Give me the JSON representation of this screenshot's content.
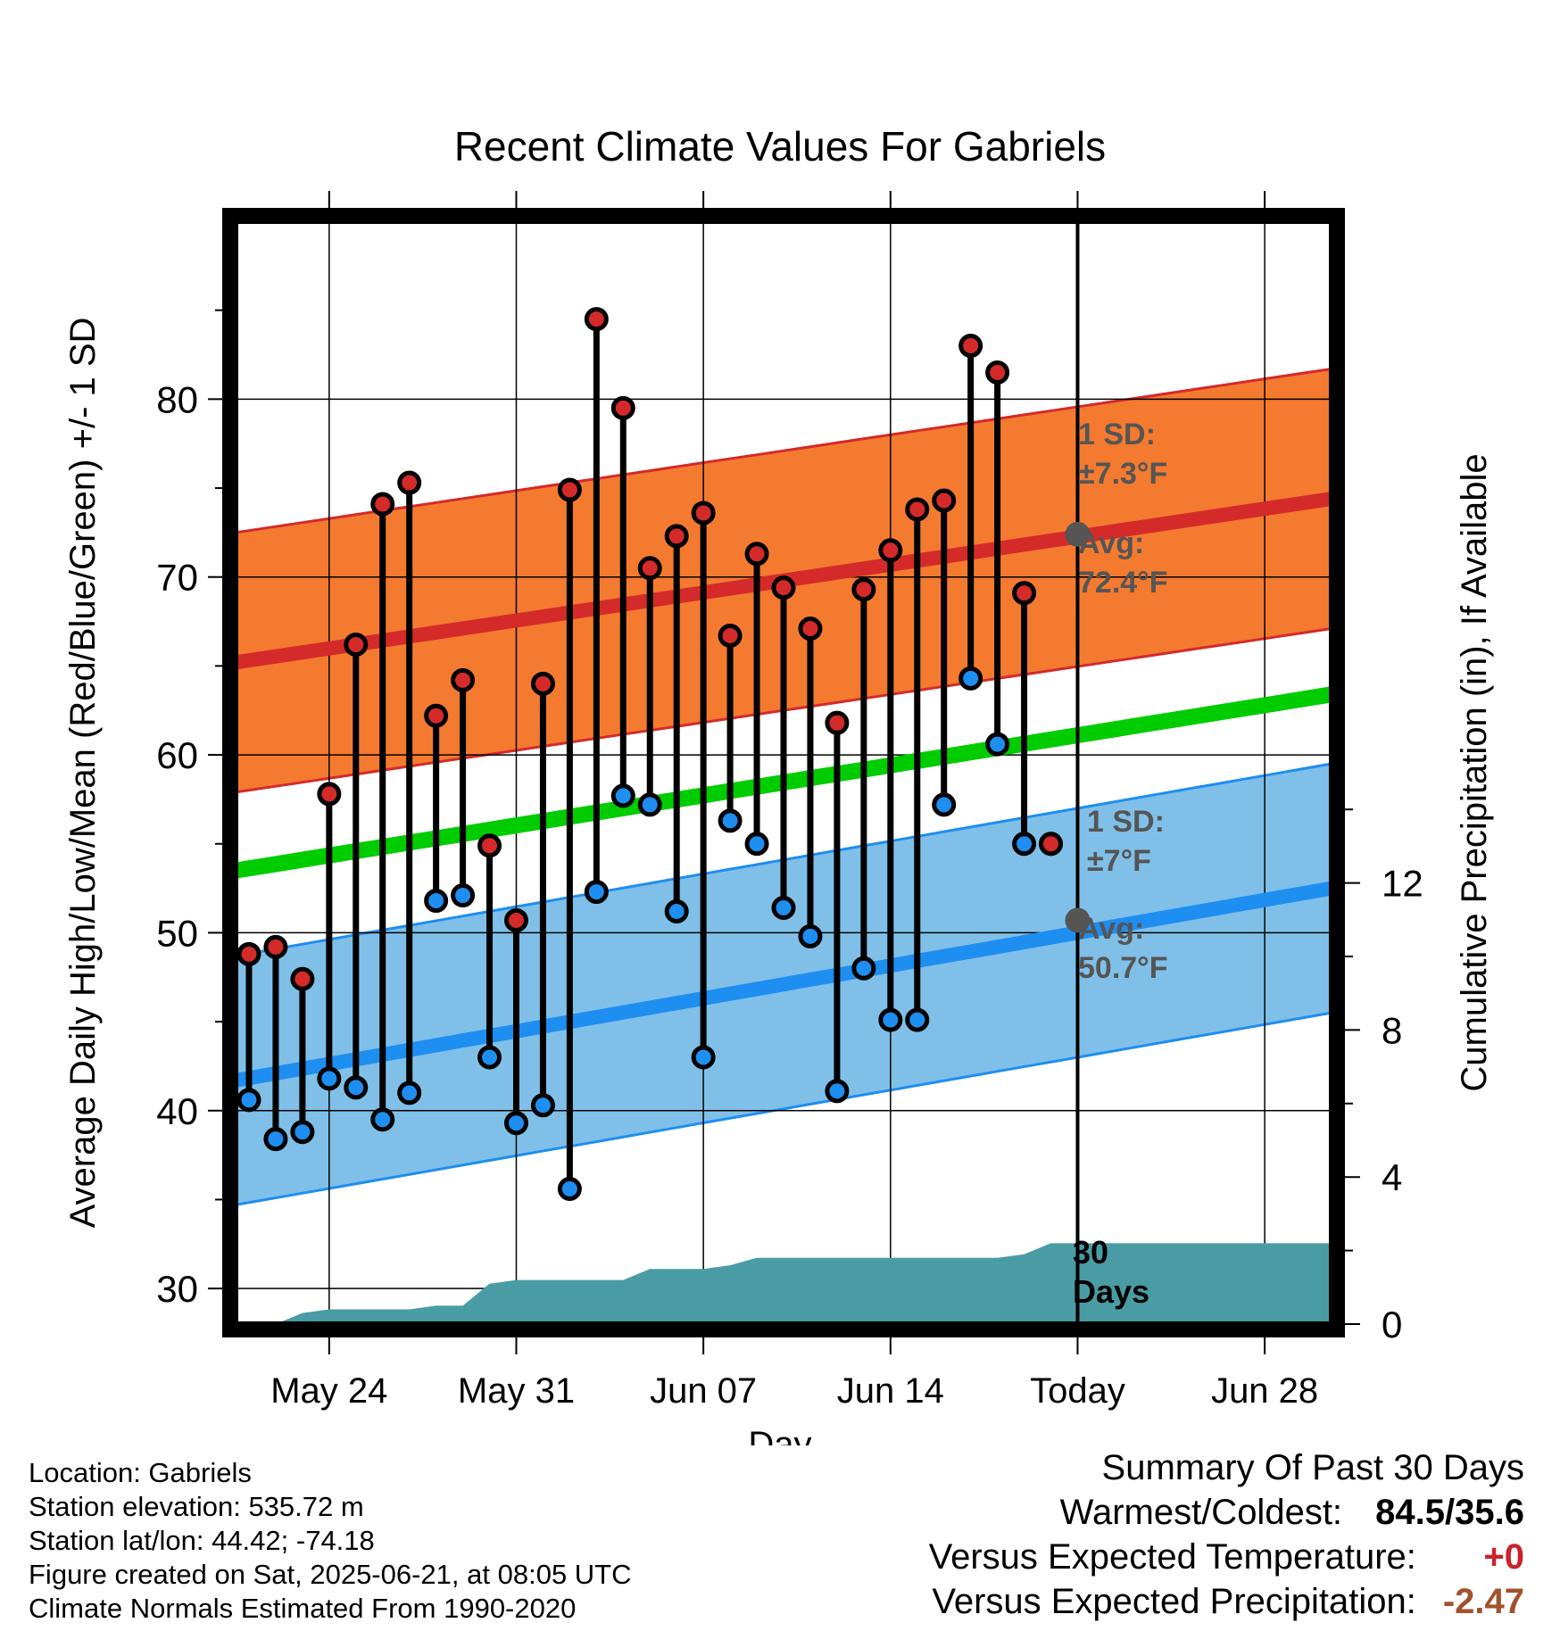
{
  "chart_data": {
    "type": "line",
    "title": "Recent Climate Values For Gabriels",
    "xlabel": "Day",
    "ylabel": "Average Daily High/Low/Mean (Red/Blue/Green) +/- 1 SD",
    "y2label": "Cumulative Precipitation (in), If Available",
    "ylim": [
      28,
      90
    ],
    "y2lim": [
      0,
      30
    ],
    "yticks": [
      "30",
      "40",
      "50",
      "60",
      "70",
      "80"
    ],
    "y2ticks": [
      "0",
      "4",
      "8",
      "12"
    ],
    "x_tick_labels": [
      "May 24",
      "May 31",
      "Jun 07",
      "Jun 14",
      "Today",
      "Jun 28"
    ],
    "x_tick_days": [
      24,
      31,
      38,
      45,
      52,
      59
    ],
    "xlim": [
      20.5,
      61.5
    ],
    "today_day": 52,
    "days": [
      21,
      22,
      23,
      24,
      25,
      26,
      27,
      28,
      29,
      30,
      31,
      32,
      33,
      34,
      35,
      36,
      37,
      38,
      39,
      40,
      41,
      42,
      43,
      44,
      45,
      46,
      47,
      48,
      49,
      50,
      51
    ],
    "highs": [
      48.8,
      49.2,
      47.4,
      57.8,
      66.2,
      74.1,
      75.3,
      62.2,
      64.2,
      54.9,
      50.7,
      64.0,
      74.9,
      84.5,
      79.5,
      70.5,
      72.3,
      73.6,
      66.7,
      71.3,
      69.4,
      67.1,
      61.8,
      69.3,
      71.5,
      73.8,
      74.3,
      83.0,
      81.5,
      69.1,
      55.0
    ],
    "lows": [
      40.6,
      38.4,
      38.8,
      41.8,
      41.3,
      39.5,
      41.0,
      51.8,
      52.1,
      43.0,
      39.3,
      40.3,
      35.6,
      52.3,
      57.7,
      57.2,
      51.2,
      43.0,
      56.3,
      55.0,
      51.4,
      49.8,
      41.1,
      48.0,
      45.1,
      45.1,
      57.2,
      64.3,
      60.6,
      55.0,
      55.0
    ],
    "normal_high": {
      "start": 65.2,
      "end": 74.4
    },
    "normal_low": {
      "start": 41.7,
      "end": 52.5
    },
    "normal_mean": {
      "start": 53.5,
      "end": 63.4
    },
    "high_sd": 7.3,
    "low_sd": 7.0,
    "precip_days": [
      21,
      22,
      23,
      24,
      25,
      26,
      27,
      28,
      29,
      30,
      31,
      32,
      33,
      34,
      35,
      36,
      37,
      38,
      39,
      40,
      41,
      42,
      43,
      44,
      45,
      46,
      47,
      48,
      49,
      50,
      51,
      52,
      61.5
    ],
    "precip": [
      0,
      0,
      0.3,
      0.4,
      0.4,
      0.4,
      0.4,
      0.5,
      0.5,
      1.1,
      1.2,
      1.2,
      1.2,
      1.2,
      1.2,
      1.5,
      1.5,
      1.5,
      1.6,
      1.8,
      1.8,
      1.8,
      1.8,
      1.8,
      1.8,
      1.8,
      1.8,
      1.8,
      1.8,
      1.9,
      2.2,
      2.2,
      2.2
    ],
    "colors": {
      "high_band": "#f47a30",
      "high_band_edge": "#d42a2a",
      "high_line": "#d42a2a",
      "low_band": "#80c0e8",
      "low_band_edge": "#1e8ef0",
      "low_line": "#1e8ef0",
      "mean_line": "#00cc00",
      "precip": "#4a9ca4",
      "high_marker": "#d42a2a",
      "low_marker": "#1e8ef0",
      "annotation": "#555555"
    },
    "annotations": {
      "high_sd_label": "1 SD:",
      "high_sd_value": "±7.3°F",
      "high_avg_label": "Avg:",
      "high_avg_value": "72.4°F",
      "high_avg": 72.4,
      "low_sd_label": "1 SD:",
      "low_sd_value": "±7°F",
      "low_avg_label": "Avg:",
      "low_avg_value": "50.7°F",
      "low_avg": 50.7,
      "precip_label_1": "30",
      "precip_label_2": "Days"
    }
  },
  "footer": {
    "location": "Location: Gabriels",
    "elevation": "Station elevation: 535.72 m",
    "latlon": "Station lat/lon: 44.42; -74.18",
    "created": "Figure created on Sat, 2025-06-21, at 08:05 UTC",
    "normals": "Climate Normals Estimated From 1990-2020"
  },
  "summary": {
    "title": "Summary Of Past 30 Days",
    "warm_cold_label": "Warmest/Coldest:",
    "warm_cold_value": "84.5/35.6",
    "temp_label": "Versus Expected Temperature:",
    "temp_value": "+0",
    "precip_label": "Versus Expected Precipitation:",
    "precip_value": "-2.47"
  }
}
